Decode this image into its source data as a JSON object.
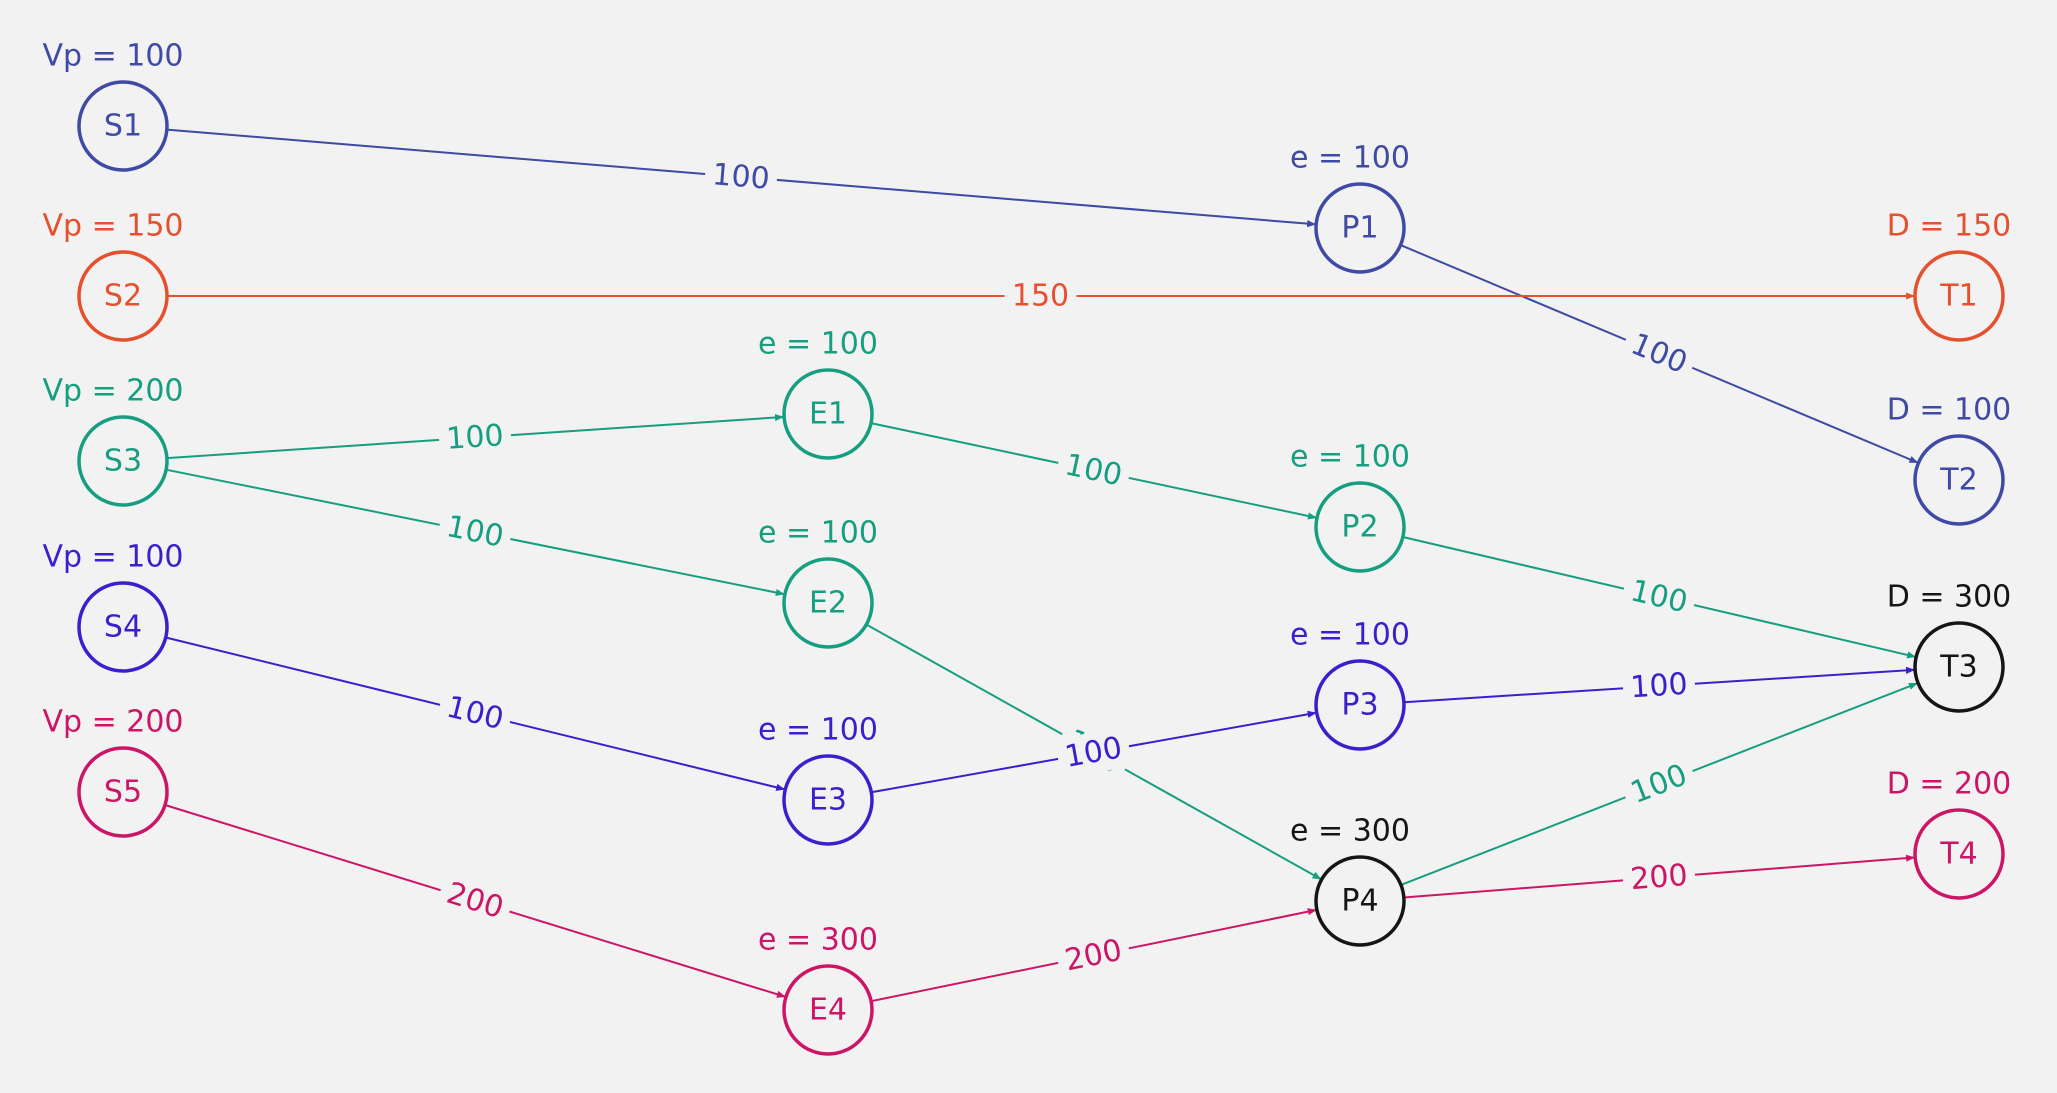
{
  "colors": {
    "blue": "#3e4aa3",
    "orange": "#e5502e",
    "green": "#169e80",
    "indigo": "#3a1fcc",
    "magenta": "#cc1566",
    "black": "#151515",
    "background": "#f2f2f2"
  },
  "nodes": [
    {
      "id": "S1",
      "label": "S1",
      "color": "blue",
      "annotation": "Vp = 100"
    },
    {
      "id": "S2",
      "label": "S2",
      "color": "orange",
      "annotation": "Vp = 150"
    },
    {
      "id": "S3",
      "label": "S3",
      "color": "green",
      "annotation": "Vp = 200"
    },
    {
      "id": "S4",
      "label": "S4",
      "color": "indigo",
      "annotation": "Vp = 100"
    },
    {
      "id": "S5",
      "label": "S5",
      "color": "magenta",
      "annotation": "Vp = 200"
    },
    {
      "id": "E1",
      "label": "E1",
      "color": "green",
      "annotation": "e = 100"
    },
    {
      "id": "E2",
      "label": "E2",
      "color": "green",
      "annotation": "e = 100"
    },
    {
      "id": "E3",
      "label": "E3",
      "color": "indigo",
      "annotation": "e = 100"
    },
    {
      "id": "E4",
      "label": "E4",
      "color": "magenta",
      "annotation": "e = 300"
    },
    {
      "id": "P1",
      "label": "P1",
      "color": "blue",
      "annotation": "e = 100"
    },
    {
      "id": "P2",
      "label": "P2",
      "color": "green",
      "annotation": "e = 100"
    },
    {
      "id": "P3",
      "label": "P3",
      "color": "indigo",
      "annotation": "e = 100"
    },
    {
      "id": "P4",
      "label": "P4",
      "color": "black",
      "annotation": "e = 300"
    },
    {
      "id": "T1",
      "label": "T1",
      "color": "orange",
      "annotation": "D = 150"
    },
    {
      "id": "T2",
      "label": "T2",
      "color": "blue",
      "annotation": "D = 100"
    },
    {
      "id": "T3",
      "label": "T3",
      "color": "black",
      "annotation": "D = 300"
    },
    {
      "id": "T4",
      "label": "T4",
      "color": "magenta",
      "annotation": "D = 200"
    }
  ],
  "edges": [
    {
      "from": "S1",
      "to": "P1",
      "label": "100",
      "color": "blue"
    },
    {
      "from": "P1",
      "to": "T2",
      "label": "100",
      "color": "blue"
    },
    {
      "from": "S2",
      "to": "T1",
      "label": "150",
      "color": "orange"
    },
    {
      "from": "S3",
      "to": "E1",
      "label": "100",
      "color": "green"
    },
    {
      "from": "S3",
      "to": "E2",
      "label": "100",
      "color": "green"
    },
    {
      "from": "E1",
      "to": "P2",
      "label": "100",
      "color": "green"
    },
    {
      "from": "E2",
      "to": "P4",
      "label": "100",
      "color": "green"
    },
    {
      "from": "P2",
      "to": "T3",
      "label": "100",
      "color": "green"
    },
    {
      "from": "P4",
      "to": "T3",
      "label": "100",
      "color": "green"
    },
    {
      "from": "S4",
      "to": "E3",
      "label": "100",
      "color": "indigo"
    },
    {
      "from": "E3",
      "to": "P3",
      "label": "100",
      "color": "indigo"
    },
    {
      "from": "P3",
      "to": "T3",
      "label": "100",
      "color": "indigo"
    },
    {
      "from": "S5",
      "to": "E4",
      "label": "200",
      "color": "magenta"
    },
    {
      "from": "E4",
      "to": "P4",
      "label": "200",
      "color": "magenta"
    },
    {
      "from": "P4",
      "to": "T4",
      "label": "200",
      "color": "magenta"
    }
  ]
}
